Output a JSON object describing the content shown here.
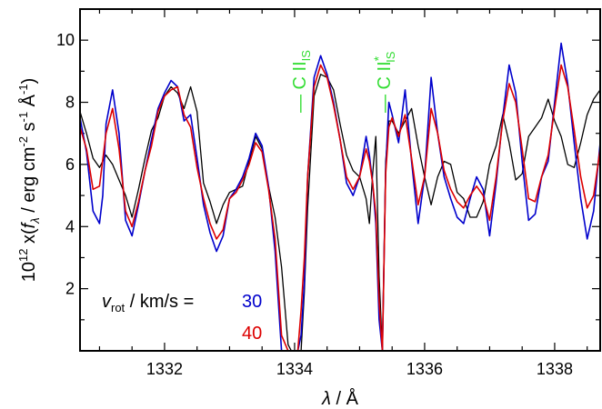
{
  "chart_data": {
    "type": "line",
    "xlabel": {
      "main": "λ",
      "rest": " / Å"
    },
    "ylabel": {
      "p1": "10",
      "p1_sup": "12",
      "p2": " x(",
      "p3": "f",
      "p3_sub": "λ",
      "p4": " / erg cm",
      "p4_sup": "-2",
      "p5": " s",
      "p5_sup": "-1",
      "p6": " Å",
      "p6_sup": "-1",
      "p7": ")"
    },
    "xlim": [
      1330.7,
      1338.7
    ],
    "ylim": [
      0,
      11
    ],
    "xticks": [
      1332,
      1334,
      1336,
      1338
    ],
    "xtick_labels": [
      "1332",
      "1334",
      "1336",
      "1338"
    ],
    "yticks": [
      2,
      4,
      6,
      8,
      10
    ],
    "ytick_labels": [
      "2",
      "4",
      "6",
      "8",
      "10"
    ],
    "annotations": [
      {
        "text": "C II",
        "sub": "IS",
        "sup": "",
        "x": 1334.0,
        "color": "#33dd33"
      },
      {
        "text": "C II",
        "sub": "IS",
        "sup": "*",
        "x": 1335.3,
        "color": "#33dd33"
      }
    ],
    "legend": {
      "var": "v",
      "var_sub": "rot",
      "unit": " / km/s =",
      "entries": [
        {
          "label": "30",
          "color": "#0000cc"
        },
        {
          "label": "40",
          "color": "#dd0000"
        }
      ]
    },
    "series": [
      {
        "color": "#000000",
        "x": [
          1330.7,
          1330.8,
          1330.9,
          1331.0,
          1331.1,
          1331.2,
          1331.3,
          1331.4,
          1331.5,
          1331.6,
          1331.7,
          1331.8,
          1331.9,
          1332.0,
          1332.1,
          1332.2,
          1332.3,
          1332.4,
          1332.5,
          1332.6,
          1332.7,
          1332.8,
          1332.9,
          1333.0,
          1333.1,
          1333.2,
          1333.3,
          1333.4,
          1333.5,
          1333.6,
          1333.7,
          1333.8,
          1333.9,
          1333.95,
          1334.0,
          1334.05,
          1334.1,
          1334.15,
          1334.2,
          1334.3,
          1334.4,
          1334.5,
          1334.6,
          1334.7,
          1334.8,
          1334.9,
          1335.0,
          1335.1,
          1335.15,
          1335.2,
          1335.25,
          1335.3,
          1335.35,
          1335.4,
          1335.45,
          1335.5,
          1335.6,
          1335.7,
          1335.8,
          1335.9,
          1336.0,
          1336.1,
          1336.2,
          1336.3,
          1336.4,
          1336.5,
          1336.6,
          1336.7,
          1336.8,
          1336.9,
          1337.0,
          1337.1,
          1337.2,
          1337.3,
          1337.4,
          1337.5,
          1337.6,
          1337.7,
          1337.8,
          1337.9,
          1338.0,
          1338.1,
          1338.2,
          1338.3,
          1338.4,
          1338.5,
          1338.6,
          1338.7
        ],
        "y": [
          7.7,
          7.0,
          6.2,
          5.9,
          6.3,
          6.0,
          5.5,
          5.0,
          4.3,
          5.2,
          6.2,
          7.1,
          7.5,
          8.2,
          8.5,
          8.3,
          7.8,
          8.5,
          7.7,
          5.4,
          4.8,
          4.1,
          4.7,
          5.1,
          5.2,
          5.3,
          6.1,
          6.9,
          6.5,
          5.3,
          4.3,
          2.7,
          0.2,
          0.0,
          0.0,
          0.0,
          0.0,
          1.9,
          4.6,
          8.2,
          8.9,
          8.8,
          8.4,
          7.3,
          6.3,
          5.8,
          5.6,
          4.9,
          4.1,
          5.7,
          6.9,
          2.4,
          0.0,
          6.1,
          7.4,
          7.4,
          7.0,
          7.4,
          7.8,
          6.6,
          5.6,
          4.7,
          5.6,
          6.1,
          6.0,
          5.1,
          4.9,
          4.3,
          4.3,
          4.8,
          6.0,
          6.6,
          7.6,
          6.7,
          5.5,
          5.7,
          6.9,
          7.2,
          7.5,
          8.1,
          7.4,
          6.9,
          6.0,
          5.9,
          6.7,
          7.6,
          8.1,
          8.4
        ]
      },
      {
        "color": "#0000cc",
        "x": [
          1330.7,
          1330.8,
          1330.9,
          1331.0,
          1331.05,
          1331.1,
          1331.2,
          1331.3,
          1331.4,
          1331.5,
          1331.6,
          1331.7,
          1331.8,
          1331.9,
          1332.0,
          1332.1,
          1332.2,
          1332.3,
          1332.4,
          1332.5,
          1332.6,
          1332.7,
          1332.8,
          1332.9,
          1333.0,
          1333.1,
          1333.2,
          1333.3,
          1333.4,
          1333.5,
          1333.6,
          1333.7,
          1333.8,
          1333.9,
          1333.95,
          1334.0,
          1334.05,
          1334.1,
          1334.15,
          1334.2,
          1334.3,
          1334.4,
          1334.5,
          1334.6,
          1334.7,
          1334.8,
          1334.9,
          1335.0,
          1335.1,
          1335.15,
          1335.2,
          1335.25,
          1335.3,
          1335.35,
          1335.4,
          1335.45,
          1335.5,
          1335.6,
          1335.7,
          1335.8,
          1335.9,
          1336.0,
          1336.1,
          1336.2,
          1336.3,
          1336.4,
          1336.5,
          1336.6,
          1336.7,
          1336.8,
          1336.9,
          1337.0,
          1337.1,
          1337.2,
          1337.3,
          1337.4,
          1337.5,
          1337.6,
          1337.7,
          1337.8,
          1337.9,
          1338.0,
          1338.1,
          1338.2,
          1338.3,
          1338.4,
          1338.5,
          1338.6,
          1338.7
        ],
        "y": [
          7.5,
          6.4,
          4.5,
          4.1,
          5.0,
          7.3,
          8.4,
          7.0,
          4.2,
          3.7,
          4.7,
          5.8,
          6.8,
          7.8,
          8.3,
          8.7,
          8.5,
          7.4,
          7.6,
          6.2,
          4.7,
          3.8,
          3.2,
          3.7,
          4.9,
          5.2,
          5.6,
          6.2,
          7.0,
          6.6,
          5.3,
          3.2,
          0.0,
          0.0,
          0.0,
          0.0,
          0.0,
          0.5,
          2.2,
          5.6,
          8.8,
          9.5,
          8.9,
          8.0,
          6.8,
          5.4,
          5.0,
          5.6,
          6.9,
          6.3,
          5.4,
          4.1,
          1.0,
          0.0,
          5.8,
          8.0,
          7.6,
          6.7,
          8.4,
          6.1,
          4.1,
          5.6,
          8.8,
          7.0,
          5.6,
          4.9,
          4.3,
          4.1,
          4.9,
          5.6,
          5.2,
          3.7,
          5.4,
          7.5,
          9.2,
          8.3,
          6.1,
          4.2,
          4.4,
          5.6,
          6.1,
          8.0,
          9.9,
          8.6,
          6.7,
          4.9,
          3.6,
          4.5,
          6.7
        ]
      },
      {
        "color": "#dd0000",
        "x": [
          1330.7,
          1330.8,
          1330.9,
          1331.0,
          1331.1,
          1331.2,
          1331.3,
          1331.4,
          1331.5,
          1331.6,
          1331.7,
          1331.8,
          1331.9,
          1332.0,
          1332.1,
          1332.2,
          1332.3,
          1332.4,
          1332.5,
          1332.6,
          1332.7,
          1332.8,
          1332.9,
          1333.0,
          1333.1,
          1333.2,
          1333.3,
          1333.4,
          1333.5,
          1333.6,
          1333.7,
          1333.8,
          1333.9,
          1333.95,
          1334.0,
          1334.05,
          1334.1,
          1334.15,
          1334.2,
          1334.3,
          1334.4,
          1334.5,
          1334.6,
          1334.7,
          1334.8,
          1334.9,
          1335.0,
          1335.1,
          1335.15,
          1335.2,
          1335.25,
          1335.3,
          1335.35,
          1335.4,
          1335.45,
          1335.5,
          1335.6,
          1335.7,
          1335.8,
          1335.9,
          1336.0,
          1336.1,
          1336.2,
          1336.3,
          1336.4,
          1336.5,
          1336.6,
          1336.7,
          1336.8,
          1336.9,
          1337.0,
          1337.1,
          1337.2,
          1337.3,
          1337.4,
          1337.5,
          1337.6,
          1337.7,
          1337.8,
          1337.9,
          1338.0,
          1338.1,
          1338.2,
          1338.3,
          1338.4,
          1338.5,
          1338.6,
          1338.7
        ],
        "y": [
          7.2,
          6.5,
          5.2,
          5.3,
          7.0,
          7.8,
          6.5,
          4.5,
          4.0,
          4.8,
          5.8,
          6.6,
          7.7,
          8.2,
          8.4,
          8.5,
          7.6,
          7.2,
          5.9,
          4.9,
          4.1,
          3.6,
          3.9,
          4.9,
          5.1,
          5.5,
          6.0,
          6.7,
          6.4,
          5.2,
          3.6,
          0.5,
          0.0,
          0.0,
          0.0,
          0.0,
          1.3,
          3.0,
          5.6,
          8.5,
          9.2,
          8.8,
          7.9,
          6.8,
          5.6,
          5.2,
          5.6,
          6.5,
          6.1,
          5.4,
          4.4,
          1.6,
          0.0,
          5.7,
          7.2,
          7.5,
          6.9,
          7.6,
          6.2,
          4.7,
          5.6,
          7.8,
          7.0,
          5.8,
          5.2,
          4.8,
          4.6,
          5.0,
          5.3,
          5.0,
          4.2,
          5.6,
          7.4,
          8.6,
          8.0,
          6.5,
          4.9,
          4.8,
          5.6,
          6.3,
          7.8,
          9.2,
          8.5,
          7.1,
          5.6,
          4.6,
          5.0,
          6.5
        ]
      }
    ]
  }
}
